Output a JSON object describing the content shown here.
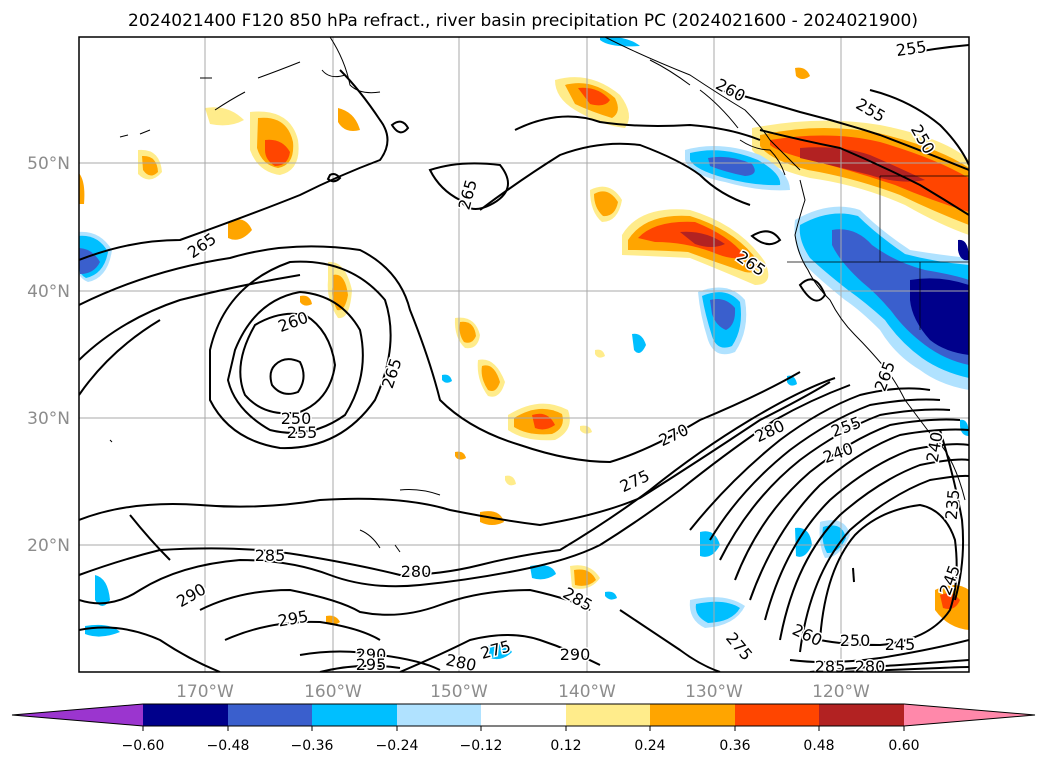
{
  "title": "2024021400 F120 850 hPa refract., river basin precipitation PC (2024021600 - 2024021900)",
  "map": {
    "lon_labels": [
      "170°W",
      "160°W",
      "150°W",
      "140°W",
      "130°W",
      "120°W"
    ],
    "lat_labels": [
      "50°N",
      "40°N",
      "30°N",
      "20°N"
    ],
    "gridlines": true
  },
  "contour_labels": [
    "255",
    "260",
    "255",
    "250",
    "265",
    "265",
    "265",
    "260",
    "265",
    "250",
    "255",
    "270",
    "280",
    "255",
    "240",
    "275",
    "285",
    "280",
    "290",
    "295",
    "285",
    "290",
    "295",
    "280",
    "275",
    "290",
    "275",
    "260",
    "250",
    "245",
    "285",
    "280",
    "245",
    "265",
    "240",
    "235"
  ],
  "colorbar": {
    "tick_labels": [
      "−0.60",
      "−0.48",
      "−0.36",
      "−0.24",
      "−0.12",
      "0.12",
      "0.24",
      "0.36",
      "0.48",
      "0.60"
    ],
    "colors": [
      "#9b35cf",
      "#00008b",
      "#3a5fcd",
      "#00bfff",
      "#b0e2ff",
      "#ffffff",
      "#ffec8b",
      "#ffa500",
      "#ff4500",
      "#b22222",
      "#ff88aa"
    ],
    "extend": "both"
  }
}
